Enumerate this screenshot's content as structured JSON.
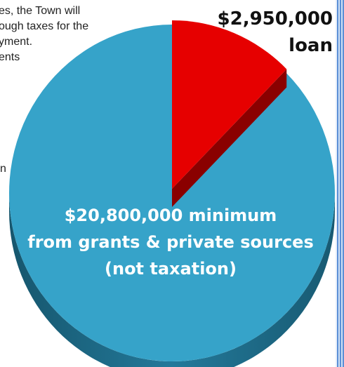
{
  "background_text": {
    "lines": [
      "es, the Town will",
      "ough taxes for the",
      "yment.",
      "ents"
    ],
    "stray_char": "n"
  },
  "chart_data": {
    "type": "pie",
    "style": "3d-exploded",
    "slices": [
      {
        "label_line1": "$2,950,000",
        "label_line2": "loan",
        "value": 2950000,
        "color": "#e60000",
        "side_color": "#8a0000",
        "exploded": true
      },
      {
        "label_line1": "$20,800,000 minimum",
        "label_line2": "from grants & private sources",
        "label_line3": "(not taxation)",
        "value": 20800000,
        "color": "#36a3c9",
        "side_color": "#1f6f8c",
        "exploded": false
      }
    ],
    "legend": "none"
  }
}
